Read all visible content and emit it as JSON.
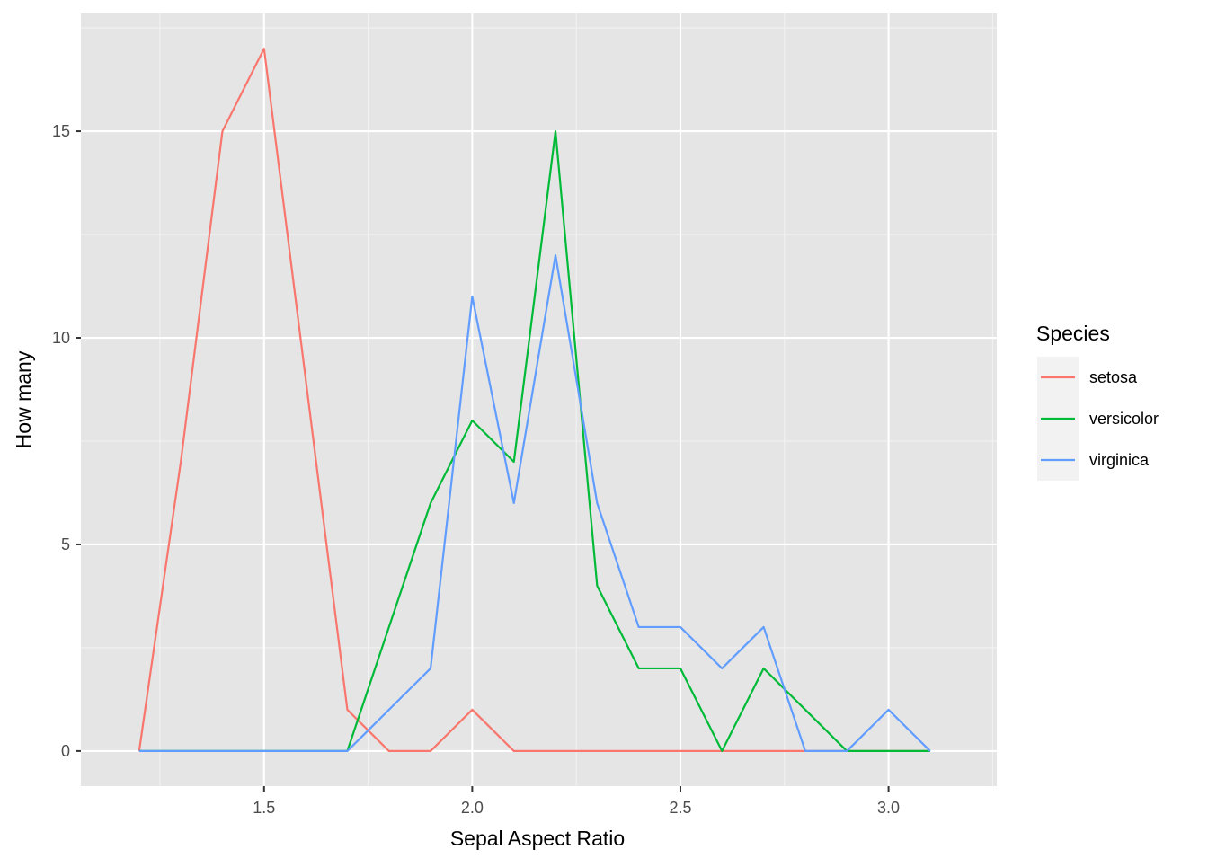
{
  "chart_data": {
    "type": "line",
    "title": "",
    "xlabel": "Sepal Aspect Ratio",
    "ylabel": "How many",
    "xlim": [
      1.06,
      3.26
    ],
    "ylim": [
      -0.85,
      17.85
    ],
    "x_ticks": [
      1.5,
      2.0,
      2.5,
      3.0
    ],
    "x_tick_labels": [
      "1.5",
      "2.0",
      "2.5",
      "3.0"
    ],
    "x_minor_ticks": [
      1.25,
      1.75,
      2.25,
      2.75,
      3.25
    ],
    "y_ticks": [
      0,
      5,
      10,
      15
    ],
    "y_tick_labels": [
      "0",
      "5",
      "10",
      "15"
    ],
    "y_minor_ticks": [
      2.5,
      7.5,
      12.5,
      17.5
    ],
    "grid": true,
    "panel_background": "#e5e5e5",
    "legend": {
      "title": "Species",
      "position": "right"
    },
    "x": [
      1.2,
      1.3,
      1.4,
      1.5,
      1.6,
      1.7,
      1.8,
      1.9,
      2.0,
      2.1,
      2.2,
      2.3,
      2.4,
      2.5,
      2.6,
      2.7,
      2.8,
      2.9,
      3.0,
      3.1
    ],
    "series": [
      {
        "name": "setosa",
        "color": "#f8766d",
        "values": [
          0,
          7,
          15,
          17,
          9,
          1,
          0,
          0,
          1,
          0,
          0,
          0,
          0,
          0,
          0,
          0,
          0,
          0,
          0,
          0
        ]
      },
      {
        "name": "versicolor",
        "color": "#00ba38",
        "values": [
          0,
          0,
          0,
          0,
          0,
          0,
          3,
          6,
          8,
          7,
          15,
          4,
          2,
          2,
          0,
          2,
          1,
          0,
          0,
          0
        ]
      },
      {
        "name": "virginica",
        "color": "#619cff",
        "values": [
          0,
          0,
          0,
          0,
          0,
          0,
          1,
          2,
          11,
          6,
          12,
          6,
          3,
          3,
          2,
          3,
          0,
          0,
          1,
          0
        ]
      }
    ]
  }
}
